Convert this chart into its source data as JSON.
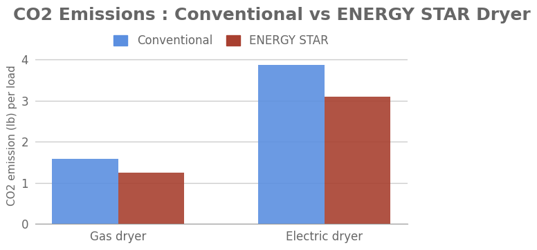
{
  "title": "CO2 Emissions : Conventional vs ENERGY STAR Dryer",
  "title_fontsize": 18,
  "title_color": "#666666",
  "ylabel": "CO2 emission (lb) per load",
  "ylabel_fontsize": 11,
  "ylabel_color": "#666666",
  "categories": [
    "Gas dryer",
    "Electric dryer"
  ],
  "conventional_values": [
    1.58,
    3.87
  ],
  "energystar_values": [
    1.25,
    3.1
  ],
  "conventional_color": "#5B8FE0",
  "energystar_color": "#A84030",
  "background_color": "#FFFFFF",
  "legend_labels": [
    "Conventional",
    "ENERGY STAR"
  ],
  "ylim": [
    0,
    4.3
  ],
  "yticks": [
    0,
    1,
    2,
    3,
    4
  ],
  "bar_width": 0.32,
  "tick_label_fontsize": 12,
  "tick_label_color": "#666666",
  "grid_color": "#CCCCCC",
  "grid_linewidth": 1.0,
  "legend_fontsize": 12
}
